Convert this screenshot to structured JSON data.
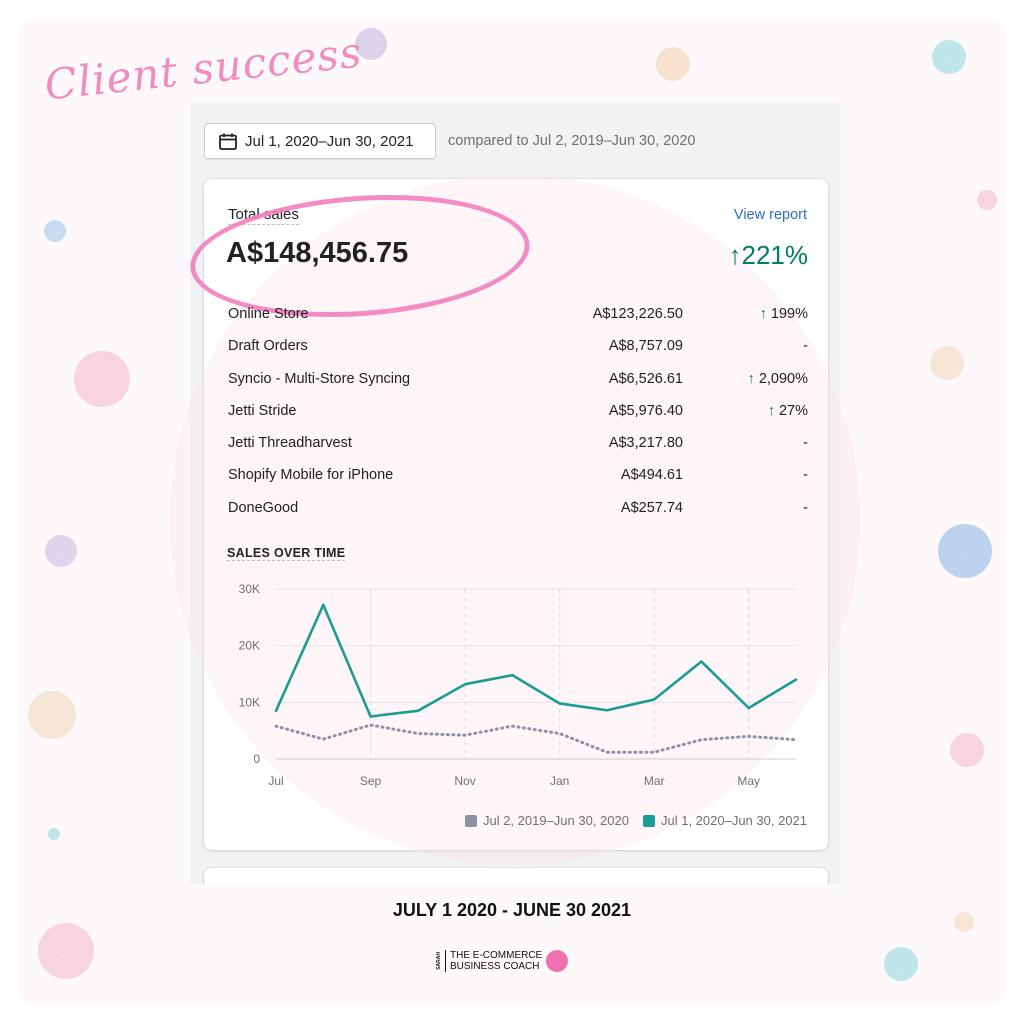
{
  "header": {
    "script_title": "Client success"
  },
  "toolbar": {
    "date_range": "Jul 1, 2020–Jun 30, 2021",
    "compare_text": "compared to Jul 2, 2019–Jun 30, 2020"
  },
  "summary": {
    "label": "Total sales",
    "view_report": "View report",
    "total": "A$148,456.75",
    "change": "↑221%"
  },
  "channels": [
    {
      "name": "Online Store",
      "amount": "A$123,226.50",
      "change": "199%",
      "up": true
    },
    {
      "name": "Draft Orders",
      "amount": "A$8,757.09",
      "change": "-",
      "up": false
    },
    {
      "name": "Syncio - Multi-Store Syncing",
      "amount": "A$6,526.61",
      "change": "2,090%",
      "up": true
    },
    {
      "name": "Jetti Stride",
      "amount": "A$5,976.40",
      "change": "27%",
      "up": true
    },
    {
      "name": "Jetti Threadharvest",
      "amount": "A$3,217.80",
      "change": "-",
      "up": false
    },
    {
      "name": "Shopify Mobile for iPhone",
      "amount": "A$494.61",
      "change": "-",
      "up": false
    },
    {
      "name": "DoneGood",
      "amount": "A$257.74",
      "change": "-",
      "up": false
    }
  ],
  "sales_over_time_label": "SALES OVER TIME",
  "chart_data": {
    "type": "line",
    "title": "SALES OVER TIME",
    "x": [
      "Jul",
      "Aug",
      "Sep",
      "Oct",
      "Nov",
      "Dec",
      "Jan",
      "Feb",
      "Mar",
      "Apr",
      "May",
      "Jun"
    ],
    "x_tick_labels": [
      "Jul",
      "Sep",
      "Nov",
      "Jan",
      "Mar",
      "May"
    ],
    "y_ticks": [
      0,
      10000,
      20000,
      30000
    ],
    "y_tick_labels": [
      "0",
      "10K",
      "20K",
      "30K"
    ],
    "ylim": [
      0,
      30000
    ],
    "grid": true,
    "legend_position": "bottom-right",
    "series": [
      {
        "name": "Jul 2, 2019–Jun 30, 2020",
        "color": "#8c91a6",
        "style": "dotted",
        "values": [
          5800,
          3500,
          6000,
          4500,
          4200,
          5800,
          4500,
          1200,
          1200,
          3400,
          4000,
          3400
        ]
      },
      {
        "name": "Jul 1, 2020–Jun 30, 2021",
        "color": "#1a9c94",
        "style": "solid",
        "values": [
          8500,
          27200,
          7500,
          8500,
          13200,
          14800,
          9800,
          8600,
          10500,
          17200,
          9000,
          14000
        ]
      }
    ]
  },
  "footer": {
    "date_range": "JULY 1 2020 - JUNE 30 2021",
    "brand_sarah": "SARAH",
    "brand_line1": "THE E-COMMERCE",
    "brand_line2": "BUSINESS COACH"
  },
  "colors": {
    "accent_pink": "#f27fbf",
    "link": "#2c6ecb",
    "positive": "#007f5f"
  }
}
